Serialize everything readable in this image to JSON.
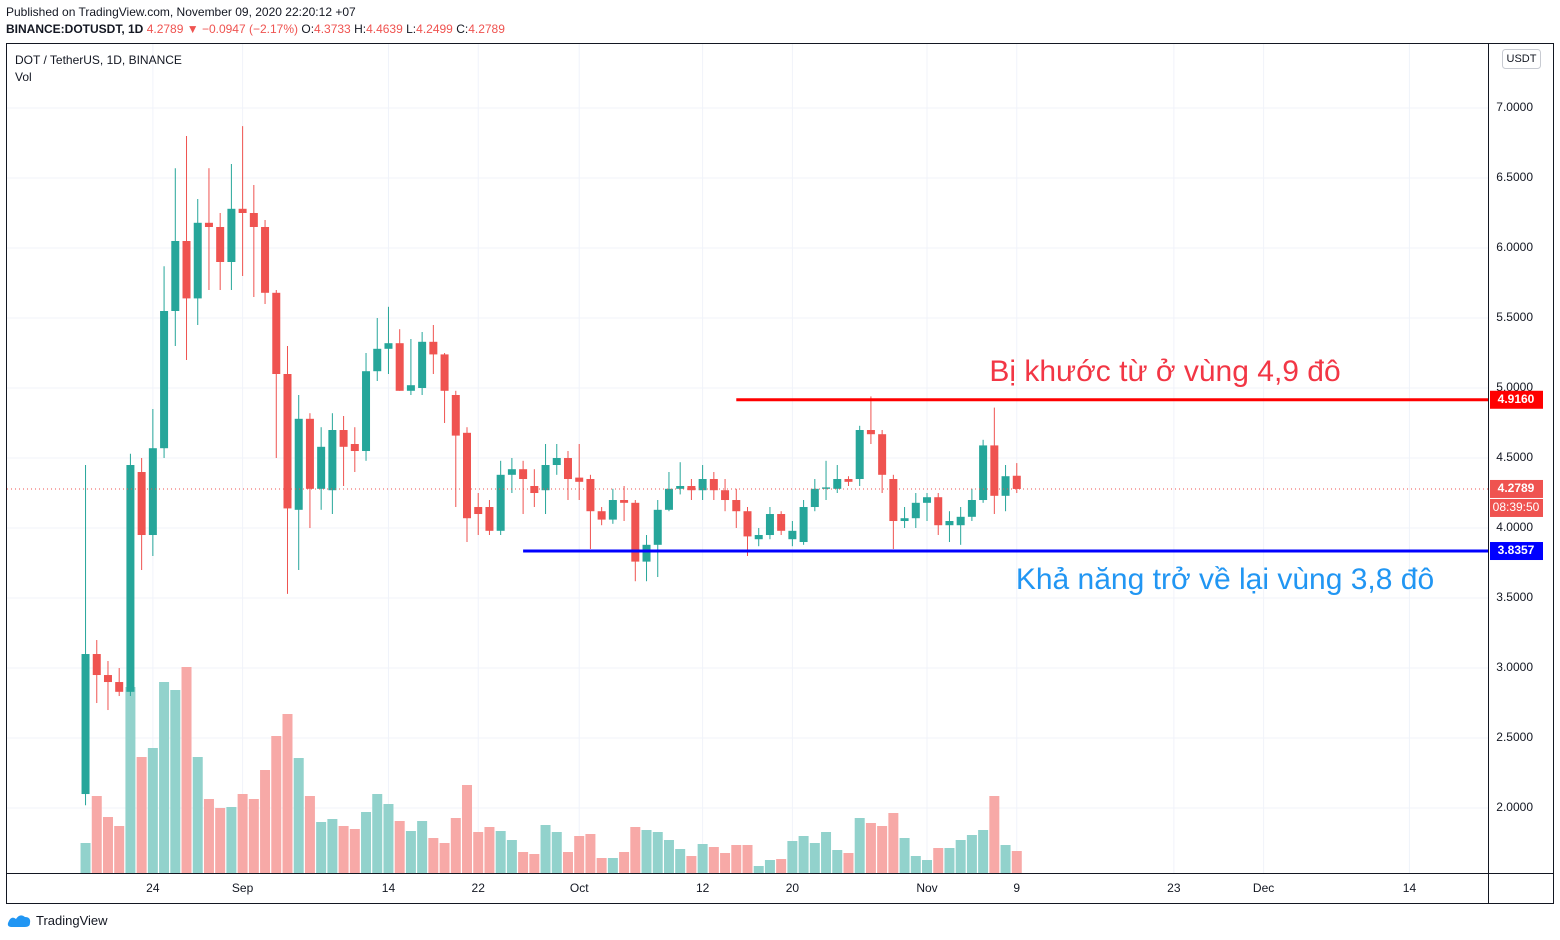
{
  "header": {
    "published": "Published on TradingView.com, November 09, 2020 22:20:12 +07",
    "symbol": "BINANCE:DOTUSDT, 1D",
    "last": "4.2789",
    "change": "▼ −0.0947 (−2.17%)",
    "ohlc": [
      {
        "key": "O:",
        "value": "4.3733"
      },
      {
        "key": "H:",
        "value": "4.4639"
      },
      {
        "key": "L:",
        "value": "4.2499"
      },
      {
        "key": "C:",
        "value": "4.2789"
      }
    ]
  },
  "footer": {
    "brand": "TradingView"
  },
  "chart_data": {
    "type": "candlestick",
    "legend": "DOT / TetherUS, 1D, BINANCE",
    "volume_label": "Vol",
    "currency": "USDT",
    "up_color": "#26a69a",
    "down_color": "#ef5350",
    "up_volume_color": "#92d2cc",
    "down_volume_color": "#f7a9a7",
    "x": [
      "2020-08-18",
      "2020-08-19",
      "2020-08-20",
      "2020-08-21",
      "2020-08-22",
      "2020-08-23",
      "2020-08-24",
      "2020-08-25",
      "2020-08-26",
      "2020-08-27",
      "2020-08-28",
      "2020-08-29",
      "2020-08-30",
      "2020-08-31",
      "2020-09-01",
      "2020-09-02",
      "2020-09-03",
      "2020-09-04",
      "2020-09-05",
      "2020-09-06",
      "2020-09-07",
      "2020-09-08",
      "2020-09-09",
      "2020-09-10",
      "2020-09-11",
      "2020-09-12",
      "2020-09-13",
      "2020-09-14",
      "2020-09-15",
      "2020-09-16",
      "2020-09-17",
      "2020-09-18",
      "2020-09-19",
      "2020-09-20",
      "2020-09-21",
      "2020-09-22",
      "2020-09-23",
      "2020-09-24",
      "2020-09-25",
      "2020-09-26",
      "2020-09-27",
      "2020-09-28",
      "2020-09-29",
      "2020-09-30",
      "2020-10-01",
      "2020-10-02",
      "2020-10-03",
      "2020-10-04",
      "2020-10-05",
      "2020-10-06",
      "2020-10-07",
      "2020-10-08",
      "2020-10-09",
      "2020-10-10",
      "2020-10-11",
      "2020-10-12",
      "2020-10-13",
      "2020-10-14",
      "2020-10-15",
      "2020-10-16",
      "2020-10-17",
      "2020-10-18",
      "2020-10-19",
      "2020-10-20",
      "2020-10-21",
      "2020-10-22",
      "2020-10-23",
      "2020-10-24",
      "2020-10-25",
      "2020-10-26",
      "2020-10-27",
      "2020-10-28",
      "2020-10-29",
      "2020-10-30",
      "2020-10-31",
      "2020-11-01",
      "2020-11-02",
      "2020-11-03",
      "2020-11-04",
      "2020-11-05",
      "2020-11-06",
      "2020-11-07",
      "2020-11-08",
      "2020-11-09"
    ],
    "open": [
      2.1,
      3.1,
      2.95,
      2.9,
      2.83,
      4.4,
      3.95,
      4.57,
      5.55,
      6.05,
      5.64,
      6.18,
      6.15,
      5.9,
      6.28,
      6.25,
      6.15,
      5.68,
      5.1,
      4.13,
      4.78,
      4.28,
      4.27,
      4.7,
      4.6,
      4.55,
      5.12,
      5.28,
      5.32,
      4.98,
      5.0,
      5.33,
      5.24,
      4.95,
      4.68,
      4.15,
      4.15,
      3.98,
      4.38,
      4.42,
      4.3,
      4.27,
      4.45,
      4.5,
      4.36,
      4.35,
      4.12,
      4.06,
      4.2,
      4.18,
      3.76,
      3.88,
      4.13,
      4.28,
      4.3,
      4.27,
      4.35,
      4.27,
      4.2,
      4.12,
      3.92,
      3.95,
      4.1,
      3.92,
      3.9,
      4.15,
      4.28,
      4.28,
      4.35,
      4.35,
      4.7,
      4.67,
      4.35,
      4.05,
      4.07,
      4.18,
      4.22,
      4.02,
      4.02,
      4.08,
      4.2,
      4.59,
      4.23,
      4.3733
    ],
    "high": [
      4.45,
      3.2,
      3.05,
      3.0,
      4.53,
      4.5,
      4.85,
      5.87,
      6.57,
      6.8,
      6.35,
      6.57,
      6.25,
      6.6,
      6.87,
      6.45,
      6.2,
      5.7,
      5.3,
      4.95,
      4.82,
      4.72,
      4.82,
      4.8,
      4.72,
      5.25,
      5.5,
      5.58,
      5.42,
      5.35,
      5.4,
      5.45,
      5.25,
      4.98,
      4.72,
      4.25,
      4.2,
      4.48,
      4.5,
      4.48,
      4.42,
      4.6,
      4.6,
      4.55,
      4.6,
      4.38,
      4.15,
      4.28,
      4.3,
      4.2,
      3.95,
      4.2,
      4.4,
      4.47,
      4.35,
      4.45,
      4.4,
      4.35,
      4.28,
      4.15,
      4.0,
      4.15,
      4.12,
      4.05,
      4.2,
      4.35,
      4.48,
      4.45,
      4.37,
      4.73,
      4.94,
      4.7,
      4.38,
      4.15,
      4.25,
      4.25,
      4.25,
      4.12,
      4.15,
      4.28,
      4.63,
      4.86,
      4.45,
      4.4639
    ],
    "low": [
      2.02,
      2.75,
      2.7,
      2.8,
      2.8,
      3.7,
      3.8,
      4.5,
      5.3,
      5.2,
      5.45,
      5.7,
      5.7,
      5.7,
      5.8,
      5.65,
      5.6,
      4.5,
      3.53,
      3.7,
      4.0,
      4.13,
      4.1,
      4.3,
      4.4,
      4.48,
      5.05,
      5.1,
      4.98,
      4.95,
      4.95,
      5.1,
      4.75,
      4.15,
      3.9,
      3.95,
      3.95,
      3.95,
      4.25,
      4.1,
      4.15,
      4.1,
      4.38,
      4.2,
      4.2,
      3.85,
      4.02,
      4.03,
      4.05,
      3.62,
      3.62,
      3.65,
      4.12,
      4.24,
      4.2,
      4.2,
      4.2,
      4.12,
      4.0,
      3.8,
      3.87,
      3.92,
      3.95,
      3.87,
      3.88,
      4.12,
      4.2,
      4.25,
      4.3,
      4.3,
      4.6,
      4.25,
      3.85,
      4.0,
      4.0,
      4.05,
      3.95,
      3.9,
      3.88,
      4.05,
      4.18,
      4.1,
      4.12,
      4.2499
    ],
    "close": [
      3.1,
      2.95,
      2.9,
      2.83,
      4.45,
      3.95,
      4.57,
      5.55,
      6.05,
      5.64,
      6.18,
      6.15,
      5.9,
      6.28,
      6.25,
      6.15,
      5.68,
      5.1,
      4.14,
      4.78,
      4.28,
      4.58,
      4.7,
      4.58,
      4.55,
      5.12,
      5.28,
      5.32,
      4.98,
      5.02,
      5.33,
      5.24,
      4.98,
      4.66,
      4.07,
      4.1,
      3.98,
      4.38,
      4.42,
      4.35,
      4.25,
      4.45,
      4.5,
      4.35,
      4.33,
      4.12,
      4.06,
      4.2,
      4.18,
      3.76,
      3.88,
      4.13,
      4.28,
      4.3,
      4.27,
      4.35,
      4.27,
      4.2,
      4.12,
      3.94,
      3.95,
      4.1,
      3.98,
      3.98,
      4.15,
      4.28,
      4.29,
      4.35,
      4.33,
      4.7,
      4.67,
      4.38,
      4.05,
      4.07,
      4.18,
      4.22,
      4.02,
      4.05,
      4.08,
      4.2,
      4.59,
      4.23,
      4.37,
      4.2789
    ],
    "volume": [
      30,
      77,
      56,
      47,
      186,
      116,
      125,
      191,
      183,
      206,
      116,
      74,
      65,
      66,
      79,
      74,
      103,
      137,
      159,
      115,
      77,
      51,
      54,
      47,
      44,
      61,
      79,
      69,
      52,
      42,
      52,
      35,
      30,
      55,
      88,
      41,
      46,
      42,
      33,
      21,
      19,
      48,
      41,
      21,
      37,
      39,
      15,
      15,
      21,
      46,
      43,
      41,
      33,
      24,
      17,
      29,
      26,
      20,
      28,
      28,
      7,
      13,
      14,
      32,
      37,
      30,
      41,
      23,
      20,
      55,
      50,
      47,
      60,
      35,
      17,
      13,
      25,
      25,
      33,
      38,
      43,
      77,
      28,
      22
    ],
    "vlim": [
      0,
      829
    ],
    "xlim": [
      "2020-08-11",
      "2020-12-21"
    ],
    "xticks": [
      {
        "value": "2020-08-24",
        "label": "24"
      },
      {
        "value": "2020-09-01",
        "label": "Sep"
      },
      {
        "value": "2020-09-14",
        "label": "14"
      },
      {
        "value": "2020-09-22",
        "label": "22"
      },
      {
        "value": "2020-10-01",
        "label": "Oct"
      },
      {
        "value": "2020-10-12",
        "label": "12"
      },
      {
        "value": "2020-10-20",
        "label": "20"
      },
      {
        "value": "2020-11-01",
        "label": "Nov"
      },
      {
        "value": "2020-11-09",
        "label": "9"
      },
      {
        "value": "2020-11-23",
        "label": "23"
      },
      {
        "value": "2020-12-01",
        "label": "Dec"
      },
      {
        "value": "2020-12-14",
        "label": "14"
      }
    ],
    "ylim": [
      1.536,
      7.457
    ],
    "yticks": [
      {
        "value": 2,
        "label": "2.0000"
      },
      {
        "value": 2.5,
        "label": "2.5000"
      },
      {
        "value": 3,
        "label": "3.0000"
      },
      {
        "value": 3.5,
        "label": "3.5000"
      },
      {
        "value": 4,
        "label": "4.0000"
      },
      {
        "value": 4.5,
        "label": "4.5000"
      },
      {
        "value": 5,
        "label": "5.0000"
      },
      {
        "value": 5.5,
        "label": "5.5000"
      },
      {
        "value": 6,
        "label": "6.0000"
      },
      {
        "value": 6.5,
        "label": "6.5000"
      },
      {
        "value": 7,
        "label": "7.0000"
      }
    ],
    "grid": true,
    "last_price": {
      "value": 4.2789,
      "label": "4.2789",
      "countdown": "08:39:50",
      "color": "#ef5350"
    },
    "lines": [
      {
        "value": 4.916,
        "label": "4.9160",
        "color": "#ff0000",
        "x_start": "2020-10-15"
      },
      {
        "value": 3.8357,
        "label": "3.8357",
        "color": "#0000ff",
        "x_start": "2020-09-26"
      }
    ],
    "annotations": [
      {
        "text": "Bị khước từ ở vùng 4,9 đô",
        "color": "#f23645"
      },
      {
        "text": "Khả năng trở về lại vùng 3,8 đô",
        "color": "#2196f3"
      }
    ]
  }
}
